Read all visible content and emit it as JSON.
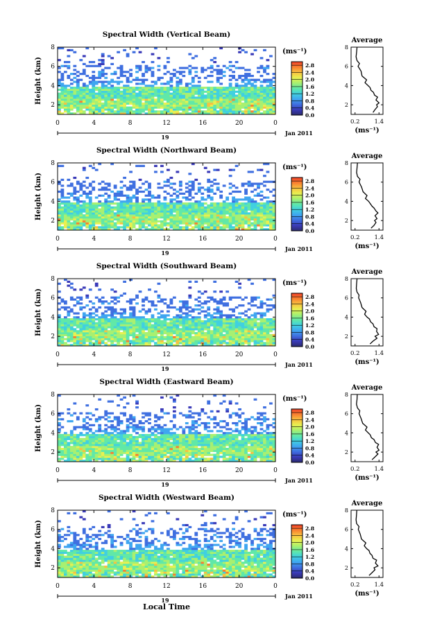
{
  "figure": {
    "date_label": "Jan 2011",
    "xlabel": "Local Time",
    "ylabel": "Height (km)",
    "colorbar_unit": "(ms⁻¹)",
    "avg_title": "Average",
    "avg_xlabel": "(ms⁻¹)",
    "day_label": "19"
  },
  "chart_data": [
    {
      "type": "heatmap",
      "title": "Spectral Width (Vertical Beam)",
      "x_ticks": [
        "0",
        "4",
        "8",
        "12",
        "16",
        "20",
        "0"
      ],
      "xlim": [
        0,
        24
      ],
      "y_ticks": [
        "2",
        "4",
        "6",
        "8"
      ],
      "ylim": [
        1.0,
        8.0
      ],
      "colorbar": {
        "ticks": [
          "0.0",
          "0.4",
          "0.8",
          "1.2",
          "1.6",
          "2.0",
          "2.4",
          "2.8"
        ],
        "range": [
          0,
          3.0
        ]
      },
      "average_profile": {
        "x_ticks": [
          "0.2",
          "1.4"
        ],
        "xlim": [
          0.0,
          1.6
        ],
        "y_ticks": [
          "2",
          "4",
          "6",
          "8"
        ],
        "ylim": [
          1.0,
          8.0
        ],
        "height_km": [
          1.2,
          1.5,
          1.8,
          2.0,
          2.2,
          2.5,
          2.8,
          3.0,
          3.3,
          3.5,
          3.8,
          4.0,
          4.3,
          4.6,
          5.0,
          5.5,
          6.0,
          6.3,
          6.6,
          7.0,
          7.5,
          8.0
        ],
        "width_ms": [
          1.1,
          1.2,
          1.32,
          1.28,
          1.4,
          1.25,
          1.33,
          1.18,
          1.12,
          1.0,
          0.95,
          0.85,
          0.7,
          0.78,
          0.55,
          0.5,
          0.35,
          0.42,
          0.3,
          0.25,
          0.28,
          0.3
        ]
      }
    },
    {
      "type": "heatmap",
      "title": "Spectral Width (Northward Beam)",
      "x_ticks": [
        "0",
        "4",
        "8",
        "12",
        "16",
        "20",
        "0"
      ],
      "xlim": [
        0,
        24
      ],
      "y_ticks": [
        "2",
        "4",
        "6",
        "8"
      ],
      "ylim": [
        1.0,
        8.0
      ],
      "colorbar": {
        "ticks": [
          "0.0",
          "0.4",
          "0.8",
          "1.2",
          "1.6",
          "2.0",
          "2.4",
          "2.8"
        ],
        "range": [
          0,
          3.0
        ]
      },
      "average_profile": {
        "x_ticks": [
          "0.2",
          "1.4"
        ],
        "xlim": [
          0.0,
          1.6
        ],
        "y_ticks": [
          "2",
          "4",
          "6",
          "8"
        ],
        "ylim": [
          1.0,
          8.0
        ],
        "height_km": [
          1.2,
          1.5,
          1.8,
          2.0,
          2.2,
          2.5,
          2.8,
          3.0,
          3.3,
          3.5,
          3.8,
          4.0,
          4.3,
          4.6,
          5.0,
          5.5,
          6.0,
          6.3,
          6.6,
          7.0,
          7.5,
          8.0
        ],
        "width_ms": [
          1.0,
          1.15,
          1.25,
          1.18,
          1.3,
          1.2,
          1.35,
          1.25,
          1.15,
          1.05,
          0.95,
          0.88,
          0.72,
          0.8,
          0.6,
          0.52,
          0.4,
          0.45,
          0.32,
          0.28,
          0.3,
          0.32
        ]
      }
    },
    {
      "type": "heatmap",
      "title": "Spectral Width (Southward Beam)",
      "x_ticks": [
        "0",
        "4",
        "8",
        "12",
        "16",
        "20",
        "0"
      ],
      "xlim": [
        0,
        24
      ],
      "y_ticks": [
        "2",
        "4",
        "6",
        "8"
      ],
      "ylim": [
        1.0,
        8.0
      ],
      "colorbar": {
        "ticks": [
          "0.0",
          "0.4",
          "0.8",
          "1.2",
          "1.6",
          "2.0",
          "2.4",
          "2.8"
        ],
        "range": [
          0,
          3.0
        ]
      },
      "average_profile": {
        "x_ticks": [
          "0.2",
          "1.4"
        ],
        "xlim": [
          0.0,
          1.6
        ],
        "y_ticks": [
          "2",
          "4",
          "6",
          "8"
        ],
        "ylim": [
          1.0,
          8.0
        ],
        "height_km": [
          1.2,
          1.5,
          1.8,
          2.0,
          2.2,
          2.5,
          2.8,
          3.0,
          3.3,
          3.5,
          3.8,
          4.0,
          4.3,
          4.6,
          5.0,
          5.5,
          6.0,
          6.3,
          6.6,
          7.0,
          7.5,
          8.0
        ],
        "width_ms": [
          0.95,
          1.1,
          1.3,
          1.2,
          1.38,
          1.28,
          1.3,
          1.15,
          1.1,
          0.98,
          0.92,
          0.8,
          0.68,
          0.75,
          0.55,
          0.48,
          0.38,
          0.4,
          0.3,
          0.26,
          0.28,
          0.3
        ]
      }
    },
    {
      "type": "heatmap",
      "title": "Spectral Width (Eastward Beam)",
      "x_ticks": [
        "0",
        "4",
        "8",
        "12",
        "16",
        "20",
        "0"
      ],
      "xlim": [
        0,
        24
      ],
      "y_ticks": [
        "2",
        "4",
        "6",
        "8"
      ],
      "ylim": [
        1.0,
        8.0
      ],
      "colorbar": {
        "ticks": [
          "0.0",
          "0.4",
          "0.8",
          "1.2",
          "1.6",
          "2.0",
          "2.4",
          "2.8"
        ],
        "range": [
          0,
          3.0
        ]
      },
      "average_profile": {
        "x_ticks": [
          "0.2",
          "1.4"
        ],
        "xlim": [
          0.0,
          1.6
        ],
        "y_ticks": [
          "2",
          "4",
          "6",
          "8"
        ],
        "ylim": [
          1.0,
          8.0
        ],
        "height_km": [
          1.2,
          1.5,
          1.8,
          2.0,
          2.2,
          2.5,
          2.8,
          3.0,
          3.3,
          3.5,
          3.8,
          4.0,
          4.3,
          4.6,
          5.0,
          5.5,
          6.0,
          6.3,
          6.6,
          7.0,
          7.5,
          8.0
        ],
        "width_ms": [
          1.05,
          1.2,
          1.35,
          1.25,
          1.4,
          1.3,
          1.38,
          1.22,
          1.15,
          1.02,
          0.96,
          0.86,
          0.72,
          0.8,
          0.58,
          0.5,
          0.4,
          0.44,
          0.32,
          0.27,
          0.3,
          0.31
        ]
      }
    },
    {
      "type": "heatmap",
      "title": "Spectral Width (Westward Beam)",
      "x_ticks": [
        "0",
        "4",
        "8",
        "12",
        "16",
        "20",
        "0"
      ],
      "xlim": [
        0,
        24
      ],
      "y_ticks": [
        "2",
        "4",
        "6",
        "8"
      ],
      "ylim": [
        1.0,
        8.0
      ],
      "colorbar": {
        "ticks": [
          "0.0",
          "0.4",
          "0.8",
          "1.2",
          "1.6",
          "2.0",
          "2.4",
          "2.8"
        ],
        "range": [
          0,
          3.0
        ]
      },
      "average_profile": {
        "x_ticks": [
          "0.2",
          "1.4"
        ],
        "xlim": [
          0.0,
          1.6
        ],
        "y_ticks": [
          "2",
          "4",
          "6",
          "8"
        ],
        "ylim": [
          1.0,
          8.0
        ],
        "height_km": [
          1.2,
          1.5,
          1.8,
          2.0,
          2.2,
          2.5,
          2.8,
          3.0,
          3.3,
          3.5,
          3.8,
          4.0,
          4.3,
          4.6,
          5.0,
          5.5,
          6.0,
          6.3,
          6.6,
          7.0,
          7.5,
          8.0
        ],
        "width_ms": [
          0.9,
          1.05,
          1.2,
          1.15,
          1.35,
          1.22,
          1.28,
          1.1,
          1.05,
          0.95,
          0.9,
          0.78,
          0.66,
          0.74,
          0.52,
          0.46,
          0.36,
          0.4,
          0.28,
          0.25,
          0.27,
          0.29
        ]
      }
    }
  ],
  "colors": {
    "colorbar": [
      "#2b2b6e",
      "#3a3ab8",
      "#3f6fe0",
      "#3fa6f0",
      "#40d0e0",
      "#60e8a8",
      "#a8f070",
      "#e8f050",
      "#f8c040",
      "#f88030",
      "#f04028"
    ]
  }
}
